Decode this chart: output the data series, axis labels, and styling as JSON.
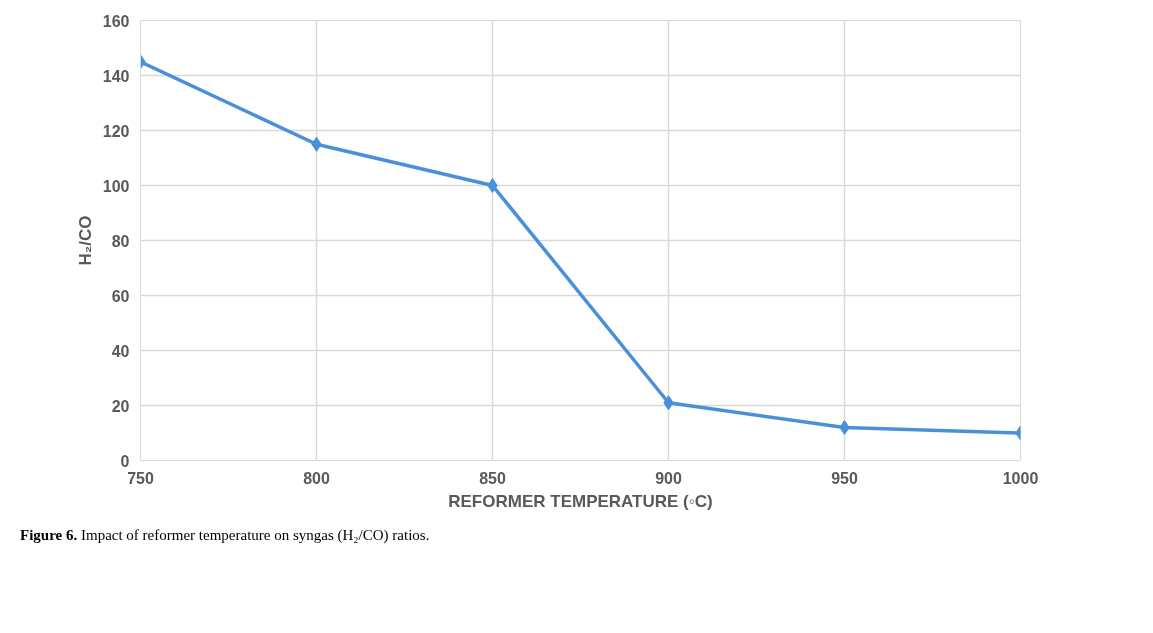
{
  "chart_data": {
    "type": "line",
    "xlabel": "REFORMER TEMPERATURE (◦C)",
    "ylabel": "H₂/CO",
    "x": [
      750,
      800,
      850,
      900,
      950,
      1000
    ],
    "series": [
      {
        "color": "#4a90d9",
        "values": [
          145,
          115,
          100,
          21,
          12,
          10
        ]
      }
    ],
    "xlim": [
      750,
      1000
    ],
    "xticks": [
      750,
      800,
      850,
      900,
      950,
      1000
    ],
    "ylim": [
      0,
      160
    ],
    "yticks": [
      0,
      20,
      40,
      60,
      80,
      100,
      120,
      140,
      160
    ],
    "grid": true,
    "marker": "diamond",
    "line_style": "solid",
    "annotations": [
      "Figure 6. Impact of reformer temperature on syngas (H₂/CO) ratios."
    ]
  }
}
